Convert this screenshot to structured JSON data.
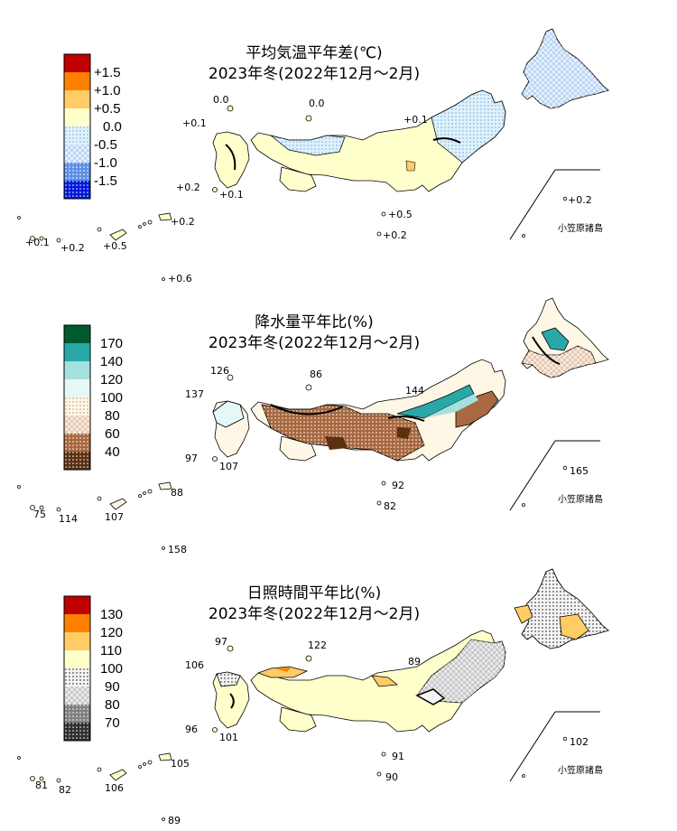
{
  "panels": [
    {
      "title1": "平均気温平年差(℃)",
      "title2": "2023年冬(2022年12月～2月)",
      "legend": [
        {
          "label": "+1.5",
          "color": "#c00000",
          "pattern": "solid"
        },
        {
          "label": "+1.0",
          "color": "#ff8000",
          "pattern": "solid"
        },
        {
          "label": "+0.5",
          "color": "#ffcc66",
          "pattern": "solid"
        },
        {
          "label": "0.0",
          "color": "#ffffcc",
          "pattern": "solid"
        },
        {
          "label": "-0.5",
          "color": "#ddf2fb",
          "pattern": "dots"
        },
        {
          "label": "-1.0",
          "color": "#bcd6f5",
          "pattern": "check"
        },
        {
          "label": "-1.5",
          "color": "#5f8fe8",
          "pattern": "dots"
        },
        {
          "label": "",
          "color": "#0018d8",
          "pattern": "dots"
        }
      ],
      "values": [
        "0.0",
        "0.0",
        "+0.1",
        "+0.1",
        "+0.2",
        "+0.1",
        "+0.5",
        "+0.2",
        "+0.1",
        "+0.2",
        "+0.5",
        "+0.2",
        "+0.6",
        "+0.2"
      ]
    },
    {
      "title1": "降水量平年比(%)",
      "title2": "2023年冬(2022年12月～2月)",
      "legend": [
        {
          "label": "170",
          "color": "#005a2e",
          "pattern": "solid"
        },
        {
          "label": "140",
          "color": "#2aa8a8",
          "pattern": "solid"
        },
        {
          "label": "120",
          "color": "#a4e0e0",
          "pattern": "solid"
        },
        {
          "label": "100",
          "color": "#e4f8f8",
          "pattern": "solid"
        },
        {
          "label": "80",
          "color": "#fff7e6",
          "pattern": "dots"
        },
        {
          "label": "60",
          "color": "#e8c8b0",
          "pattern": "check"
        },
        {
          "label": "40",
          "color": "#a86840",
          "pattern": "dots"
        },
        {
          "label": "",
          "color": "#5a3010",
          "pattern": "dots"
        }
      ],
      "values": [
        "126",
        "86",
        "137",
        "144",
        "97",
        "107",
        "92",
        "82",
        "75",
        "114",
        "107",
        "88",
        "158",
        "165"
      ]
    },
    {
      "title1": "日照時間平年比(%)",
      "title2": "2023年冬(2022年12月～2月)",
      "legend": [
        {
          "label": "130",
          "color": "#c00000",
          "pattern": "solid"
        },
        {
          "label": "120",
          "color": "#ff8000",
          "pattern": "solid"
        },
        {
          "label": "110",
          "color": "#ffcc66",
          "pattern": "solid"
        },
        {
          "label": "100",
          "color": "#ffffcc",
          "pattern": "solid"
        },
        {
          "label": "90",
          "color": "#f4f4f4",
          "pattern": "dots"
        },
        {
          "label": "80",
          "color": "#c8c8c8",
          "pattern": "check"
        },
        {
          "label": "70",
          "color": "#808080",
          "pattern": "dots"
        },
        {
          "label": "",
          "color": "#303030",
          "pattern": "dots"
        }
      ],
      "values": [
        "97",
        "122",
        "106",
        "89",
        "96",
        "101",
        "91",
        "90",
        "81",
        "82",
        "106",
        "105",
        "89",
        "102"
      ]
    }
  ],
  "ogasawara_label": "小笠原諸島"
}
